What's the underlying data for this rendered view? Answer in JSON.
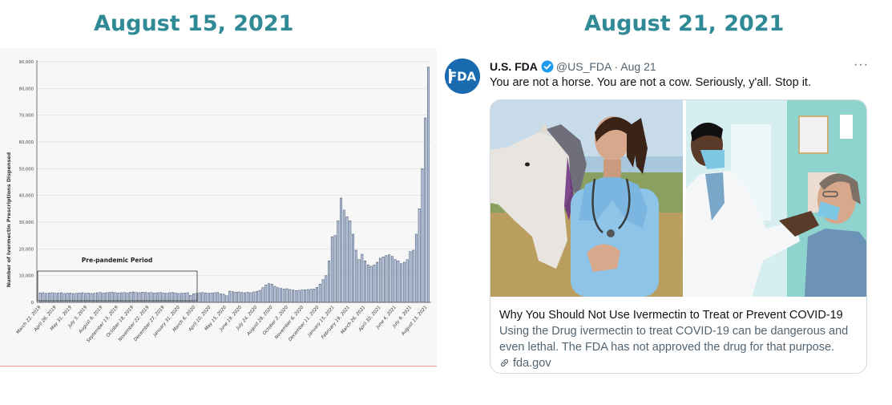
{
  "headings": {
    "left": "August 15, 2021",
    "right": "August 21, 2021"
  },
  "chart_data": {
    "type": "bar",
    "title": "",
    "xlabel": "",
    "ylabel": "Number of Ivermectin Prescriptions Dispensed",
    "ylim": [
      0,
      90000
    ],
    "yticks": [
      "0",
      "10,000",
      "20,000",
      "30,000",
      "40,000",
      "50,000",
      "60,000",
      "70,000",
      "80,000",
      "90,000"
    ],
    "xtick_labels": [
      "March 22, 2019",
      "April 26, 2019",
      "May 31, 2019",
      "July 5, 2019",
      "August 9, 2019",
      "September 13, 2019",
      "October 18, 2019",
      "November 22, 2019",
      "December 27, 2019",
      "January 31, 2020",
      "March 6, 2020",
      "April 10, 2020",
      "May 15, 2020",
      "June 19, 2020",
      "July 24, 2020",
      "August 28, 2020",
      "October 2, 2020",
      "November 6, 2020",
      "December 11, 2020",
      "January 15, 2021",
      "February 19, 2021",
      "March 26, 2021",
      "April 30, 2021",
      "June 4, 2021",
      "July 9, 2021",
      "August 13, 2021"
    ],
    "annotation": "Pre-pandemic Period",
    "values": [
      3500,
      3600,
      3400,
      3500,
      3600,
      3400,
      3500,
      3600,
      3300,
      3400,
      3500,
      3300,
      3400,
      3500,
      3600,
      3400,
      3500,
      3300,
      3400,
      3600,
      3700,
      3500,
      3600,
      3700,
      3800,
      3600,
      3500,
      3600,
      3700,
      3500,
      3800,
      3900,
      3700,
      3600,
      3800,
      3700,
      3600,
      3700,
      3500,
      3600,
      3700,
      3500,
      3400,
      3600,
      3700,
      3500,
      3300,
      3400,
      3500,
      3600,
      2600,
      3200,
      3400,
      3600,
      3700,
      3500,
      3400,
      3500,
      3600,
      3700,
      3200,
      3000,
      2500,
      4200,
      4000,
      3800,
      3900,
      3700,
      3600,
      3800,
      3600,
      3900,
      4100,
      4500,
      5500,
      6500,
      7000,
      6800,
      6000,
      5500,
      5200,
      5000,
      5100,
      4800,
      4600,
      4400,
      4500,
      4600,
      4700,
      4800,
      4900,
      5000,
      5600,
      6800,
      8500,
      10000,
      15500,
      24500,
      25000,
      30500,
      39000,
      34500,
      32000,
      30500,
      25500,
      19500,
      16000,
      18000,
      15500,
      14000,
      13500,
      14000,
      15000,
      16500,
      17000,
      17500,
      17800,
      17200,
      16000,
      15500,
      14500,
      15000,
      16000,
      19000,
      19500,
      25500,
      35000,
      50000,
      69000,
      88000
    ]
  },
  "tweet": {
    "name": "U.S. FDA",
    "handle": "@US_FDA",
    "separator": "·",
    "date": "Aug 21",
    "more": "···",
    "avatar_text": "FDA",
    "text": "You are not a horse. You are not a cow. Seriously, y'all. Stop it.",
    "card": {
      "title": "Why You Should Not Use Ivermectin to Treat or Prevent COVID-19",
      "description": "Using the Drug ivermectin to treat COVID-19 can be dangerous and even lethal. The FDA has not approved the drug for that purpose.",
      "domain": "fda.gov"
    },
    "colors": {
      "verified": "#1d9bf0",
      "avatar": "#1a6ab0"
    }
  }
}
